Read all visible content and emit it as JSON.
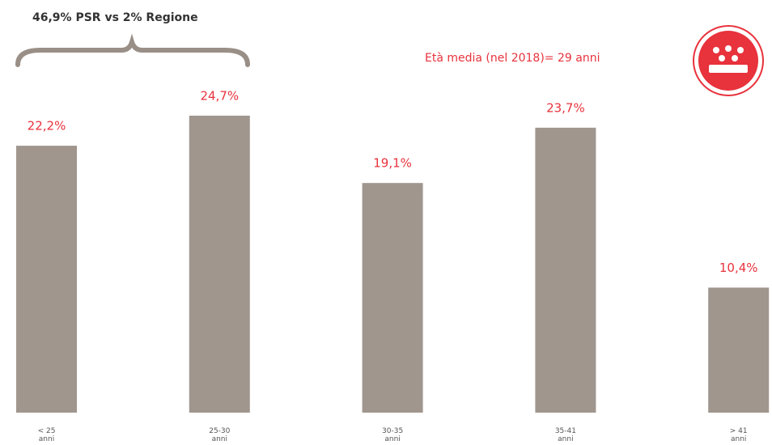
{
  "chart_data": {
    "type": "bar",
    "group_note": "46,9% PSR vs 2% Regione",
    "annotation": "Età media (nel 2018)= 29 anni",
    "categories": [
      "< 25\nanni",
      "25-30\nanni",
      "30-35\nanni",
      "35-41\nanni",
      "> 41\nanni"
    ],
    "values": [
      22.2,
      24.7,
      19.1,
      23.7,
      10.4
    ],
    "value_labels": [
      "22,2%",
      "24,7%",
      "19,1%",
      "23,7%",
      "10,4%"
    ],
    "color": "#a0968e",
    "label_color": "#e8323c"
  }
}
